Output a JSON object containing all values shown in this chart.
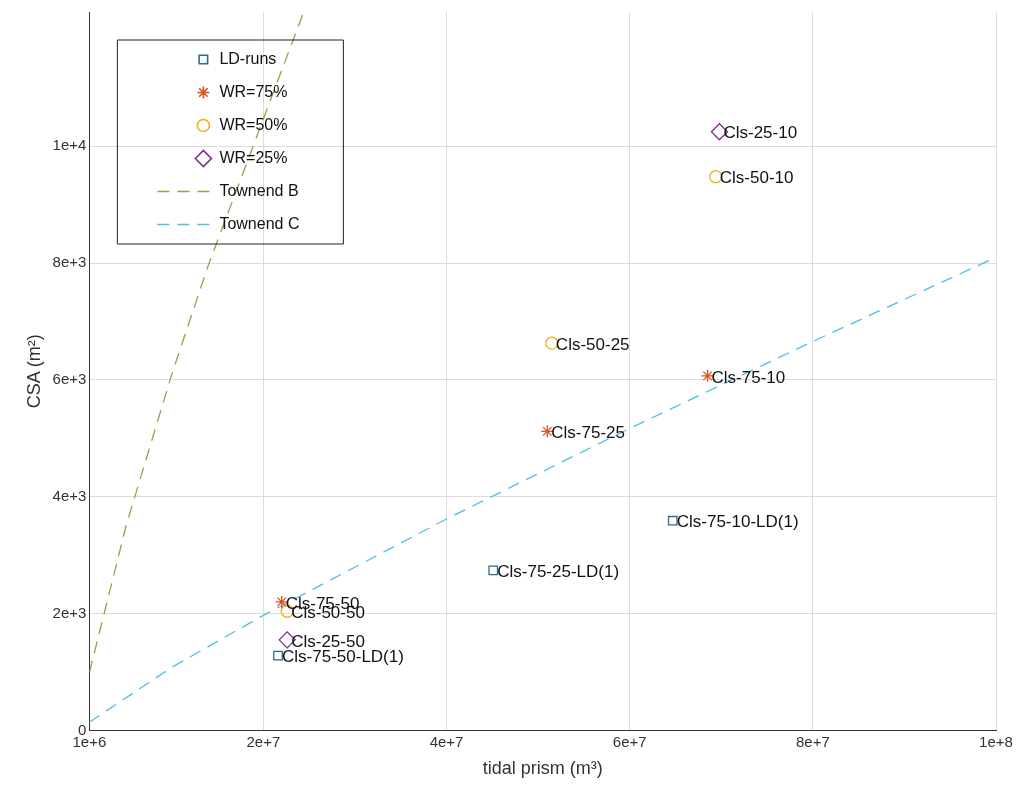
{
  "chart_data": {
    "type": "scatter",
    "xlabel": "tidal prism (m³)",
    "ylabel": "CSA (m²)",
    "xlim": [
      1000000,
      100000000
    ],
    "ylim": [
      0,
      12300
    ],
    "xticks": [
      {
        "value": 1000000,
        "label": "1e+6"
      },
      {
        "value": 20000000,
        "label": "2e+7"
      },
      {
        "value": 40000000,
        "label": "4e+7"
      },
      {
        "value": 60000000,
        "label": "6e+7"
      },
      {
        "value": 80000000,
        "label": "8e+7"
      },
      {
        "value": 100000000,
        "label": "1e+8"
      }
    ],
    "yticks": [
      0,
      {
        "value": 2000,
        "label": "2e+3"
      },
      {
        "value": 4000,
        "label": "4e+3"
      },
      {
        "value": 6000,
        "label": "6e+3"
      },
      {
        "value": 8000,
        "label": "8e+3"
      },
      {
        "value": 10000,
        "label": "1e+4"
      }
    ],
    "grid": true,
    "legend": "top left",
    "series": [
      {
        "name": "LD-runs",
        "color": "#2a6f8e",
        "marker": "square",
        "x": [
          21600000,
          45100000,
          64700000
        ],
        "values": [
          1280,
          2740,
          3590
        ]
      },
      {
        "name": "WR=75%",
        "color": "#d9531e",
        "marker": "cross",
        "x": [
          22000000,
          51000000,
          68500000
        ],
        "values": [
          2200,
          5120,
          6070
        ]
      },
      {
        "name": "WR=50%",
        "color": "#edb120",
        "marker": "circle",
        "x": [
          22600000,
          51500000,
          69400000
        ],
        "values": [
          2040,
          6630,
          9480
        ]
      },
      {
        "name": "WR=25%",
        "color": "#7e2f8e",
        "marker": "diamond",
        "x": [
          22600000,
          69800000
        ],
        "values": [
          1550,
          10250
        ]
      },
      {
        "name": "Townend B",
        "type": "line",
        "color": "#a09a50",
        "line_style": "dashed",
        "marker": "none",
        "x": [
          1000000,
          5000000,
          10000000,
          14000000,
          24400000
        ],
        "values": [
          990,
          3500,
          6100,
          7970,
          12300
        ]
      },
      {
        "name": "Townend C",
        "type": "line",
        "color": "#4dbeee",
        "line_style": "dashed",
        "marker": "none",
        "x": [
          1000000,
          10000000,
          20000000,
          40000000,
          60000000,
          80000000,
          100000000
        ],
        "values": [
          140,
          1080,
          1970,
          3620,
          5170,
          6660,
          8100
        ]
      }
    ],
    "annotations": [
      {
        "text": "Cls-75-50",
        "x": 22000000,
        "y": 2200
      },
      {
        "text": "Cls-50-50",
        "x": 22600000,
        "y": 2040
      },
      {
        "text": "Cls-25-50",
        "x": 22600000,
        "y": 1550
      },
      {
        "text": "Cls-75-50-LD(1)",
        "x": 21600000,
        "y": 1280
      },
      {
        "text": "Cls-75-25-LD(1)",
        "x": 45100000,
        "y": 2740
      },
      {
        "text": "Cls-75-10-LD(1)",
        "x": 64700000,
        "y": 3590
      },
      {
        "text": "Cls-75-25",
        "x": 51000000,
        "y": 5120
      },
      {
        "text": "Cls-75-10",
        "x": 68500000,
        "y": 6070
      },
      {
        "text": "Cls-50-25",
        "x": 51500000,
        "y": 6630
      },
      {
        "text": "Cls-50-10",
        "x": 69400000,
        "y": 9480
      },
      {
        "text": "Cls-25-10",
        "x": 69800000,
        "y": 10250
      }
    ]
  }
}
